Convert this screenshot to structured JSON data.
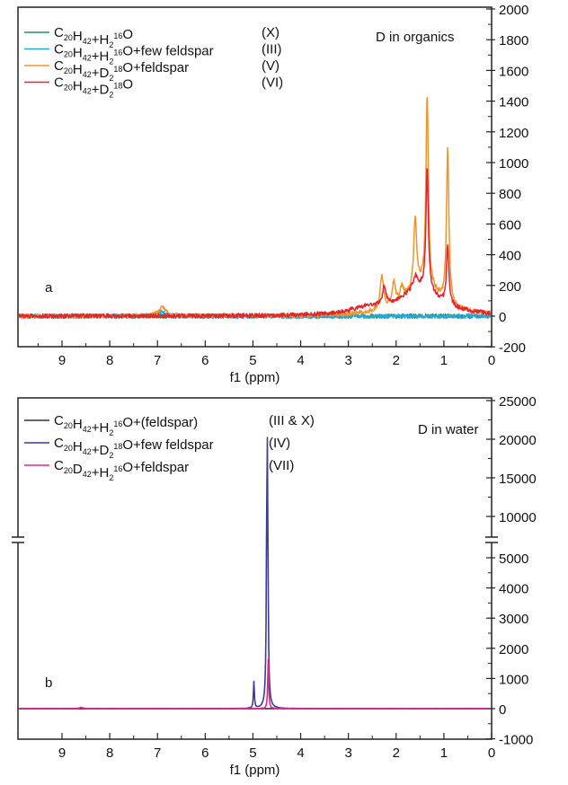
{
  "chart_data": [
    {
      "type": "line",
      "panel_label": "a",
      "title": "D in organics",
      "xlabel": "f1 (ppm)",
      "ylabel": "",
      "xlim": [
        9.92,
        0
      ],
      "ylim": [
        -200,
        2000
      ],
      "xticks": [
        9,
        8,
        7,
        6,
        5,
        4,
        3,
        2,
        1,
        0
      ],
      "yticks": [
        -200,
        0,
        200,
        400,
        600,
        800,
        1000,
        1200,
        1400,
        1600,
        1800,
        2000
      ],
      "legend_position": "top-left",
      "series": [
        {
          "name": "C20H42+H2 16O",
          "label_parts": [
            [
              "n",
              "C"
            ],
            [
              "b",
              "20"
            ],
            [
              "n",
              "H"
            ],
            [
              "b",
              "42"
            ],
            [
              "n",
              "+H"
            ],
            [
              "b",
              "2"
            ],
            [
              "p",
              "16"
            ],
            [
              "n",
              "O"
            ]
          ],
          "code": "(X)",
          "color": "#1a9a5c",
          "noise": 14,
          "seed": 3,
          "peaks": []
        },
        {
          "name": "C20H42+H2 16O+few feldspar",
          "label_parts": [
            [
              "n",
              "C"
            ],
            [
              "b",
              "20"
            ],
            [
              "n",
              "H"
            ],
            [
              "b",
              "42"
            ],
            [
              "n",
              "+H"
            ],
            [
              "b",
              "2"
            ],
            [
              "p",
              "16"
            ],
            [
              "n",
              "O+few feldspar"
            ]
          ],
          "code": "(III)",
          "color": "#2aa6de",
          "noise": 14,
          "seed": 7,
          "peaks": [
            [
              6.95,
              25,
              0.12
            ]
          ]
        },
        {
          "name": "C20H42+D2 18O+feldspar",
          "label_parts": [
            [
              "n",
              "C"
            ],
            [
              "b",
              "20"
            ],
            [
              "n",
              "H"
            ],
            [
              "b",
              "42"
            ],
            [
              "n",
              "+D"
            ],
            [
              "b",
              "2"
            ],
            [
              "p",
              "18"
            ],
            [
              "n",
              "O+feldspar"
            ]
          ],
          "code": "(V)",
          "color": "#f0952c",
          "noise": 14,
          "seed": 11,
          "peaks": [
            [
              6.9,
              60,
              0.08
            ],
            [
              2.3,
              220,
              0.04
            ],
            [
              2.05,
              150,
              0.04
            ],
            [
              1.88,
              80,
              0.04
            ],
            [
              1.6,
              460,
              0.035
            ],
            [
              1.35,
              1250,
              0.03
            ],
            [
              0.92,
              1000,
              0.03
            ],
            [
              1.45,
              200,
              0.45
            ]
          ]
        },
        {
          "name": "C20H42+D2 18O",
          "label_parts": [
            [
              "n",
              "C"
            ],
            [
              "b",
              "20"
            ],
            [
              "n",
              "H"
            ],
            [
              "b",
              "42"
            ],
            [
              "n",
              "+D"
            ],
            [
              "b",
              "2"
            ],
            [
              "p",
              "18"
            ],
            [
              "n",
              "O"
            ]
          ],
          "code": "(VI)",
          "color": "#e2262e",
          "noise": 14,
          "seed": 19,
          "peaks": [
            [
              2.25,
              130,
              0.04
            ],
            [
              1.6,
              80,
              0.05
            ],
            [
              1.35,
              800,
              0.03
            ],
            [
              0.92,
              380,
              0.03
            ],
            [
              1.5,
              180,
              0.5
            ],
            [
              2.6,
              40,
              0.4
            ]
          ]
        }
      ]
    },
    {
      "type": "line",
      "panel_label": "b",
      "title": "D in water",
      "xlabel": "f1 (ppm)",
      "ylabel": "",
      "xlim": [
        9.92,
        0
      ],
      "ylim": [
        -1000,
        25000
      ],
      "y_axis_break": [
        5500,
        7300
      ],
      "xticks": [
        9,
        8,
        7,
        6,
        5,
        4,
        3,
        2,
        1,
        0
      ],
      "yticks_lower": [
        -1000,
        0,
        1000,
        2000,
        3000,
        4000,
        5000
      ],
      "yticks_upper": [
        10000,
        15000,
        20000,
        25000
      ],
      "legend_position": "top-left",
      "series": [
        {
          "name": "C20H42+H2 16O+(feldspar)",
          "label_parts": [
            [
              "n",
              "C"
            ],
            [
              "b",
              "20"
            ],
            [
              "n",
              "H"
            ],
            [
              "b",
              "42"
            ],
            [
              "n",
              "+H"
            ],
            [
              "b",
              "2"
            ],
            [
              "p",
              "16"
            ],
            [
              "n",
              "O+(feldspar)"
            ]
          ],
          "code": "(III & X)",
          "color": "#333333",
          "noise": 6,
          "seed": 5,
          "peaks": []
        },
        {
          "name": "C20H42+D2 18O+few feldspar",
          "label_parts": [
            [
              "n",
              "C"
            ],
            [
              "b",
              "20"
            ],
            [
              "n",
              "H"
            ],
            [
              "b",
              "42"
            ],
            [
              "n",
              "+D"
            ],
            [
              "b",
              "2"
            ],
            [
              "p",
              "18"
            ],
            [
              "n",
              "O+few feldspar"
            ]
          ],
          "code": "(IV)",
          "color": "#3b3d96",
          "noise": 6,
          "seed": 9,
          "peaks": [
            [
              4.98,
              880,
              0.012
            ],
            [
              4.7,
              21300,
              0.01
            ]
          ]
        },
        {
          "name": "C20D42+H2 16O+feldspar",
          "label_parts": [
            [
              "n",
              "C"
            ],
            [
              "b",
              "20"
            ],
            [
              "n",
              "D"
            ],
            [
              "b",
              "42"
            ],
            [
              "n",
              "+H"
            ],
            [
              "b",
              "2"
            ],
            [
              "p",
              "16"
            ],
            [
              "n",
              "O+feldspar"
            ]
          ],
          "code": "(VII)",
          "color": "#e0288c",
          "noise": 8,
          "seed": 13,
          "peaks": [
            [
              4.68,
              1650,
              0.012
            ],
            [
              8.6,
              40,
              0.05
            ]
          ]
        }
      ]
    }
  ]
}
